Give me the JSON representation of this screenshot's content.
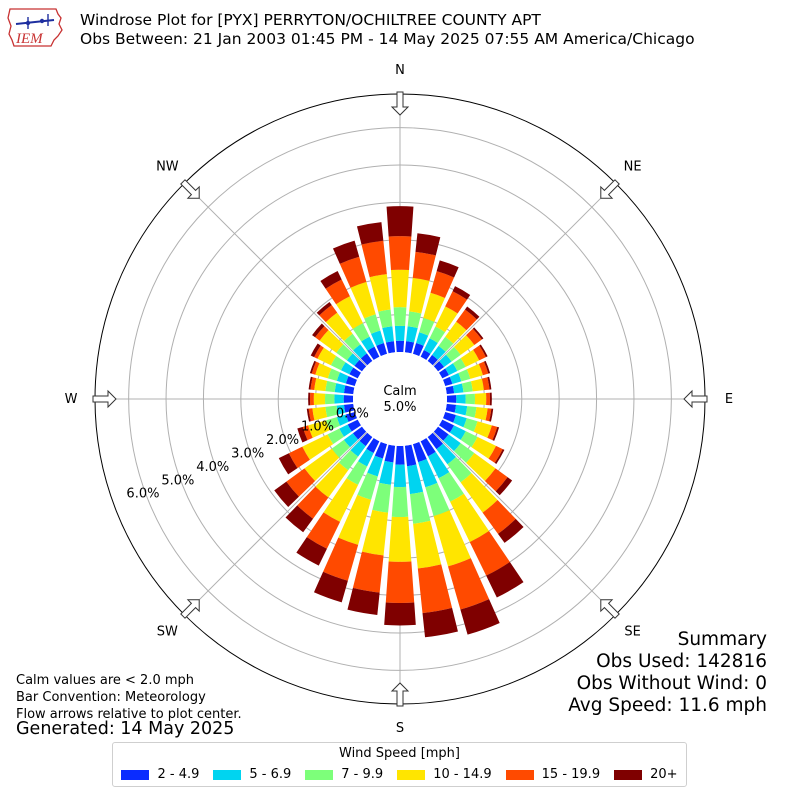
{
  "header": {
    "logo_text": "IEM",
    "title_line1": "Windrose Plot for [PYX] PERRYTON/OCHILTREE COUNTY APT",
    "title_line2": "Obs Between: 21 Jan 2003 01:45 PM - 14 May 2025 07:55 AM America/Chicago"
  },
  "notes": {
    "line1": "Calm values are < 2.0 mph",
    "line2": "Bar Convention: Meteorology",
    "line3": "Flow arrows relative to plot center.",
    "generated": "Generated: 14 May 2025"
  },
  "summary": {
    "title": "Summary",
    "obs_used": "Obs Used: 142816",
    "obs_without_wind": "Obs Without Wind: 0",
    "avg_speed": "Avg Speed: 11.6 mph"
  },
  "legend": {
    "title": "Wind Speed [mph]",
    "items": [
      {
        "label": "2 - 4.9",
        "color": "#0a2cff"
      },
      {
        "label": "5 - 6.9",
        "color": "#00d4f0"
      },
      {
        "label": "7 - 9.9",
        "color": "#7dff7a"
      },
      {
        "label": "10 - 14.9",
        "color": "#ffe500"
      },
      {
        "label": "15 - 19.9",
        "color": "#ff4a00"
      },
      {
        "label": "20+",
        "color": "#7f0000"
      }
    ]
  },
  "chart_data": {
    "type": "windrose",
    "calm_label": "Calm",
    "calm_value": "5.0%",
    "radial_unit": "%",
    "radial_ticks": [
      0.0,
      1.0,
      2.0,
      3.0,
      4.0,
      5.0,
      6.0
    ],
    "radial_tick_labels": [
      "0.0%",
      "1.0%",
      "2.0%",
      "3.0%",
      "4.0%",
      "5.0%",
      "6.0%"
    ],
    "rmax": 6.9,
    "cardinal_labels": [
      "N",
      "NE",
      "E",
      "SE",
      "S",
      "SW",
      "W",
      "NW"
    ],
    "speed_bins": [
      "2 - 4.9",
      "5 - 6.9",
      "7 - 9.9",
      "10 - 14.9",
      "15 - 19.9",
      "20+"
    ],
    "bin_colors": [
      "#0a2cff",
      "#00d4f0",
      "#7dff7a",
      "#ffe500",
      "#ff4a00",
      "#7f0000"
    ],
    "direction_deg": [
      0,
      10,
      20,
      30,
      40,
      50,
      60,
      70,
      80,
      90,
      100,
      110,
      120,
      130,
      140,
      150,
      160,
      170,
      180,
      190,
      200,
      210,
      220,
      230,
      240,
      250,
      260,
      270,
      280,
      290,
      300,
      310,
      320,
      330,
      340,
      350
    ],
    "cumulative_pct": [
      [
        0.3,
        0.7,
        1.2,
        2.2,
        3.1,
        3.9
      ],
      [
        0.3,
        0.7,
        1.1,
        2.0,
        2.7,
        3.2
      ],
      [
        0.3,
        0.6,
        1.0,
        1.7,
        2.3,
        2.6
      ],
      [
        0.2,
        0.55,
        0.9,
        1.5,
        1.95,
        2.1
      ],
      [
        0.2,
        0.5,
        0.8,
        1.3,
        1.7,
        1.8
      ],
      [
        0.2,
        0.45,
        0.75,
        1.2,
        1.45,
        1.5
      ],
      [
        0.2,
        0.45,
        0.7,
        1.1,
        1.3,
        1.35
      ],
      [
        0.2,
        0.45,
        0.7,
        1.05,
        1.2,
        1.25
      ],
      [
        0.2,
        0.45,
        0.7,
        1.0,
        1.15,
        1.2
      ],
      [
        0.25,
        0.5,
        0.75,
        1.05,
        1.15,
        1.2
      ],
      [
        0.25,
        0.55,
        0.8,
        1.1,
        1.2,
        1.25
      ],
      [
        0.3,
        0.6,
        0.9,
        1.3,
        1.45,
        1.5
      ],
      [
        0.35,
        0.7,
        1.05,
        1.6,
        1.8,
        1.85
      ],
      [
        0.35,
        0.75,
        1.2,
        1.9,
        2.3,
        2.45
      ],
      [
        0.4,
        0.9,
        1.5,
        2.5,
        3.2,
        3.5
      ],
      [
        0.45,
        1.1,
        1.8,
        3.0,
        4.0,
        4.65
      ],
      [
        0.5,
        1.2,
        2.0,
        3.4,
        4.6,
        5.3
      ],
      [
        0.55,
        1.3,
        2.1,
        3.3,
        4.5,
        5.15
      ],
      [
        0.5,
        1.1,
        1.9,
        3.1,
        4.2,
        4.8
      ],
      [
        0.45,
        1.05,
        1.8,
        2.95,
        3.95,
        4.55
      ],
      [
        0.4,
        0.9,
        1.55,
        2.8,
        3.8,
        4.4
      ],
      [
        0.35,
        0.75,
        1.3,
        2.4,
        3.2,
        3.7
      ],
      [
        0.3,
        0.65,
        1.1,
        2.0,
        2.7,
        3.15
      ],
      [
        0.3,
        0.6,
        1.0,
        1.9,
        2.5,
        2.9
      ],
      [
        0.3,
        0.55,
        0.9,
        1.65,
        2.05,
        2.35
      ],
      [
        0.25,
        0.5,
        0.8,
        1.3,
        1.45,
        1.6
      ],
      [
        0.25,
        0.45,
        0.75,
        1.1,
        1.2,
        1.25
      ],
      [
        0.25,
        0.5,
        0.75,
        1.05,
        1.15,
        1.2
      ],
      [
        0.25,
        0.5,
        0.75,
        1.05,
        1.15,
        1.2
      ],
      [
        0.25,
        0.5,
        0.75,
        1.1,
        1.2,
        1.25
      ],
      [
        0.25,
        0.5,
        0.8,
        1.2,
        1.3,
        1.4
      ],
      [
        0.25,
        0.5,
        0.85,
        1.4,
        1.55,
        1.65
      ],
      [
        0.25,
        0.55,
        0.9,
        1.6,
        1.85,
        1.95
      ],
      [
        0.3,
        0.6,
        1.0,
        1.8,
        2.3,
        2.55
      ],
      [
        0.3,
        0.65,
        1.1,
        2.0,
        2.7,
        3.15
      ],
      [
        0.3,
        0.7,
        1.15,
        2.1,
        3.0,
        3.5
      ]
    ]
  }
}
